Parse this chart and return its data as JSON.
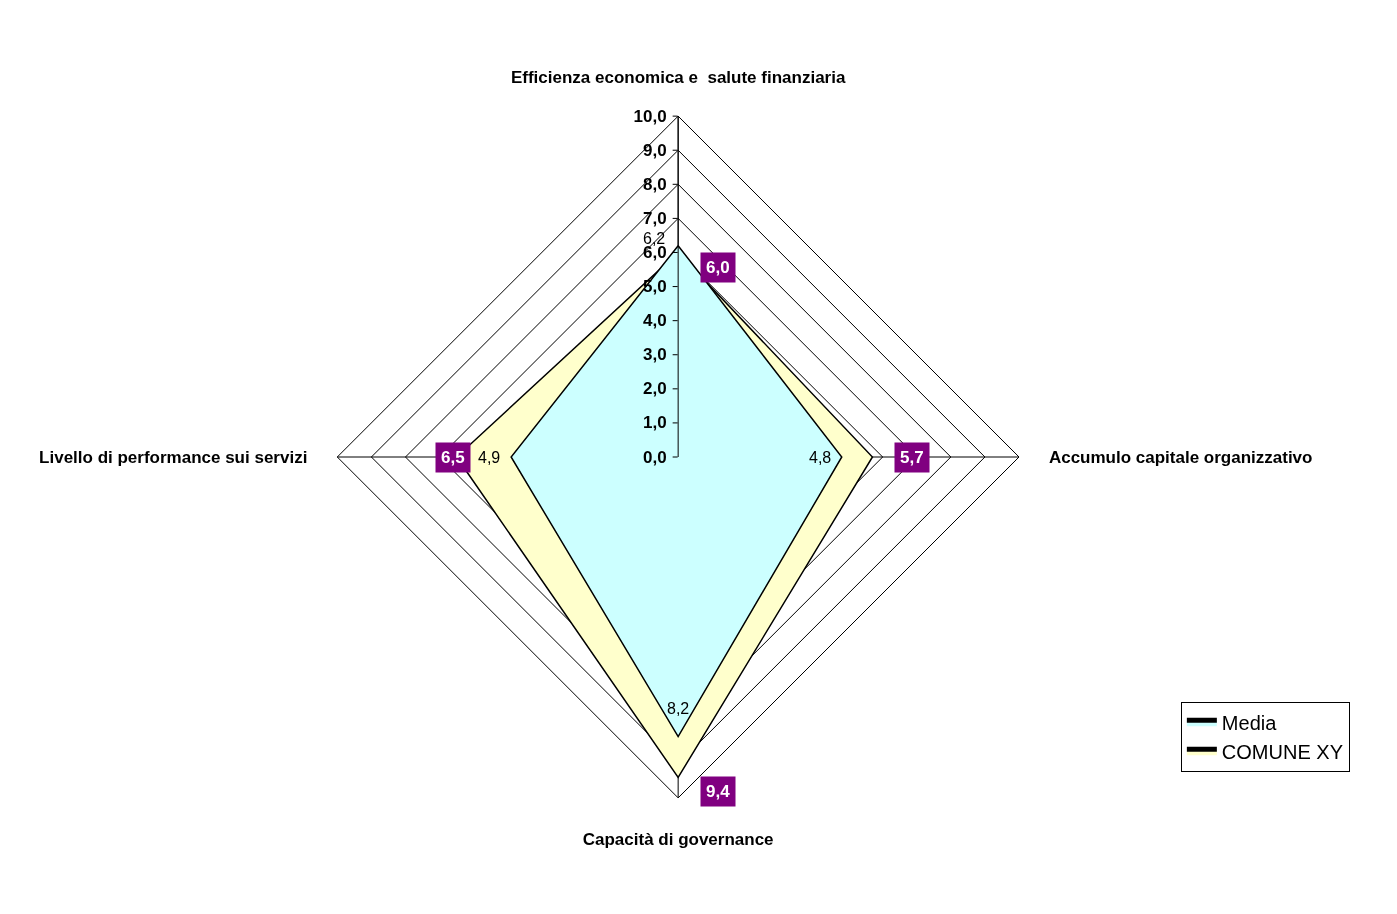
{
  "chart_data": {
    "type": "radar",
    "categories": [
      "Efficienza economica e  salute finanziaria",
      "Accumulo capitale organizzativo",
      "Capacità di governance",
      "Livello di performance sui servizi"
    ],
    "series": [
      {
        "name": "Media",
        "color": "#ccffff",
        "values": [
          6.2,
          4.8,
          8.2,
          4.9
        ],
        "value_labels": [
          "6,2",
          "4,8",
          "8,2",
          "4,9"
        ]
      },
      {
        "name": "COMUNE XY",
        "color": "#ffffcc",
        "values": [
          6.0,
          5.7,
          9.4,
          6.5
        ],
        "value_labels": [
          "6,0",
          "5,7",
          "9,4",
          "6,5"
        ]
      }
    ],
    "ylim": [
      0,
      10
    ],
    "yticks": [
      {
        "value": 0,
        "label": "0,0"
      },
      {
        "value": 1,
        "label": "1,0"
      },
      {
        "value": 2,
        "label": "2,0"
      },
      {
        "value": 3,
        "label": "3,0"
      },
      {
        "value": 4,
        "label": "4,0"
      },
      {
        "value": 5,
        "label": "5,0"
      },
      {
        "value": 6,
        "label": "6,0"
      },
      {
        "value": 7,
        "label": "7,0"
      },
      {
        "value": 8,
        "label": "8,0"
      },
      {
        "value": 9,
        "label": "9,0"
      },
      {
        "value": 10,
        "label": "10,0"
      }
    ],
    "grid": true,
    "legend": "bottom right",
    "marker": "none"
  }
}
